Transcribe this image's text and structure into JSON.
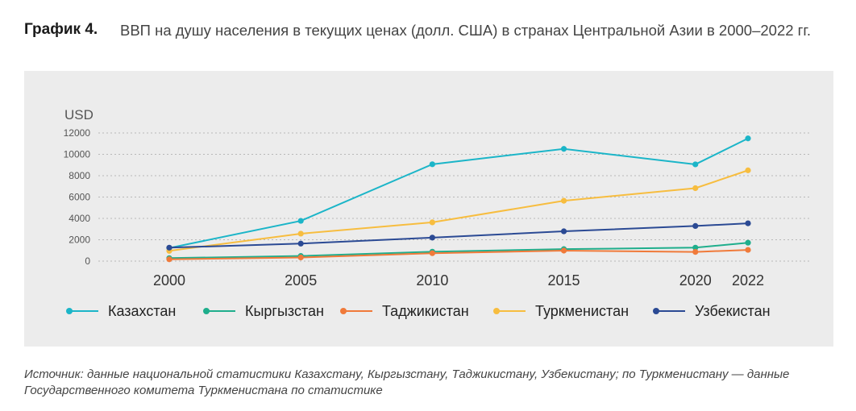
{
  "header": {
    "label": "График 4.",
    "title": "ВВП на душу населения в текущих ценах (долл. США) в странах Центральной Азии в 2000–2022 гг."
  },
  "source": "Источник: данные национальной статистики Казахстану, Кыргызстану, Таджикистану, Узбекистану; по Туркменистану — данные Государственного комитета Туркменистана по статистике",
  "chart_data": {
    "type": "line",
    "ylabel": "USD",
    "x": [
      2000,
      2005,
      2010,
      2015,
      2020,
      2022
    ],
    "xticks": [
      "2000",
      "2005",
      "2010",
      "2015",
      "2020",
      "2022"
    ],
    "yticks": [
      "0",
      "2000",
      "4000",
      "6000",
      "8000",
      "10000",
      "12000"
    ],
    "ylim": [
      0,
      12000
    ],
    "grid": true,
    "legend_position": "bottom",
    "series": [
      {
        "name": "Казахстан",
        "color": "#1bb5c8",
        "values": [
          1230,
          3770,
          9070,
          10510,
          9060,
          11490
        ]
      },
      {
        "name": "Кыргызстан",
        "color": "#1fae8c",
        "values": [
          280,
          480,
          880,
          1120,
          1260,
          1720
        ]
      },
      {
        "name": "Таджикистан",
        "color": "#f07a3a",
        "values": [
          170,
          340,
          740,
          980,
          860,
          1050
        ]
      },
      {
        "name": "Туркменистан",
        "color": "#f7bd3f",
        "values": [
          960,
          2570,
          3630,
          5650,
          6830,
          8500
        ]
      },
      {
        "name": "Узбекистан",
        "color": "#2b4a94",
        "values": [
          1260,
          1640,
          2200,
          2790,
          3290,
          3540
        ]
      }
    ]
  }
}
